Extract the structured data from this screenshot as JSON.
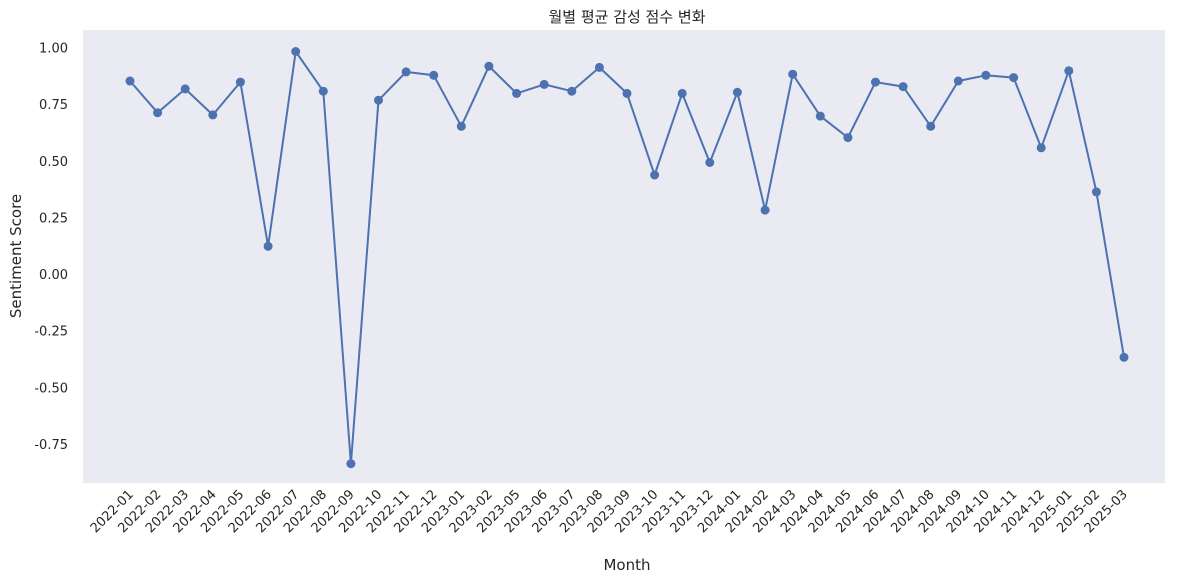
{
  "chart_data": {
    "type": "line",
    "title": "월별 평균 감성 점수 변화",
    "xlabel": "Month",
    "ylabel": "Sentiment Score",
    "ylim": [
      -0.92,
      1.08
    ],
    "yticks": [
      -0.75,
      -0.5,
      -0.25,
      0.0,
      0.25,
      0.5,
      0.75,
      1.0
    ],
    "ytick_labels": [
      "-0.75",
      "-0.50",
      "-0.25",
      "0.00",
      "0.25",
      "0.50",
      "0.75",
      "1.00"
    ],
    "grid": false,
    "x": [
      "2022-01",
      "2022-02",
      "2022-03",
      "2022-04",
      "2022-05",
      "2022-06",
      "2022-07",
      "2022-08",
      "2022-09",
      "2022-10",
      "2022-11",
      "2022-12",
      "2023-01",
      "2023-02",
      "2023-05",
      "2023-06",
      "2023-07",
      "2023-08",
      "2023-09",
      "2023-10",
      "2023-11",
      "2023-12",
      "2024-01",
      "2024-02",
      "2024-03",
      "2024-04",
      "2024-05",
      "2024-06",
      "2024-07",
      "2024-08",
      "2024-09",
      "2024-10",
      "2024-11",
      "2024-12",
      "2025-01",
      "2025-02",
      "2025-03"
    ],
    "series": [
      {
        "color": "#4c72b0",
        "marker": "circle",
        "values": [
          0.855,
          0.715,
          0.82,
          0.705,
          0.85,
          0.125,
          0.985,
          0.81,
          -0.835,
          0.77,
          0.895,
          0.88,
          0.655,
          0.92,
          0.8,
          0.84,
          0.81,
          0.915,
          0.8,
          0.44,
          0.8,
          0.495,
          0.805,
          0.285,
          0.885,
          0.7,
          0.605,
          0.85,
          0.83,
          0.655,
          0.855,
          0.88,
          0.87,
          0.56,
          0.9,
          0.365,
          -0.365
        ]
      }
    ]
  }
}
